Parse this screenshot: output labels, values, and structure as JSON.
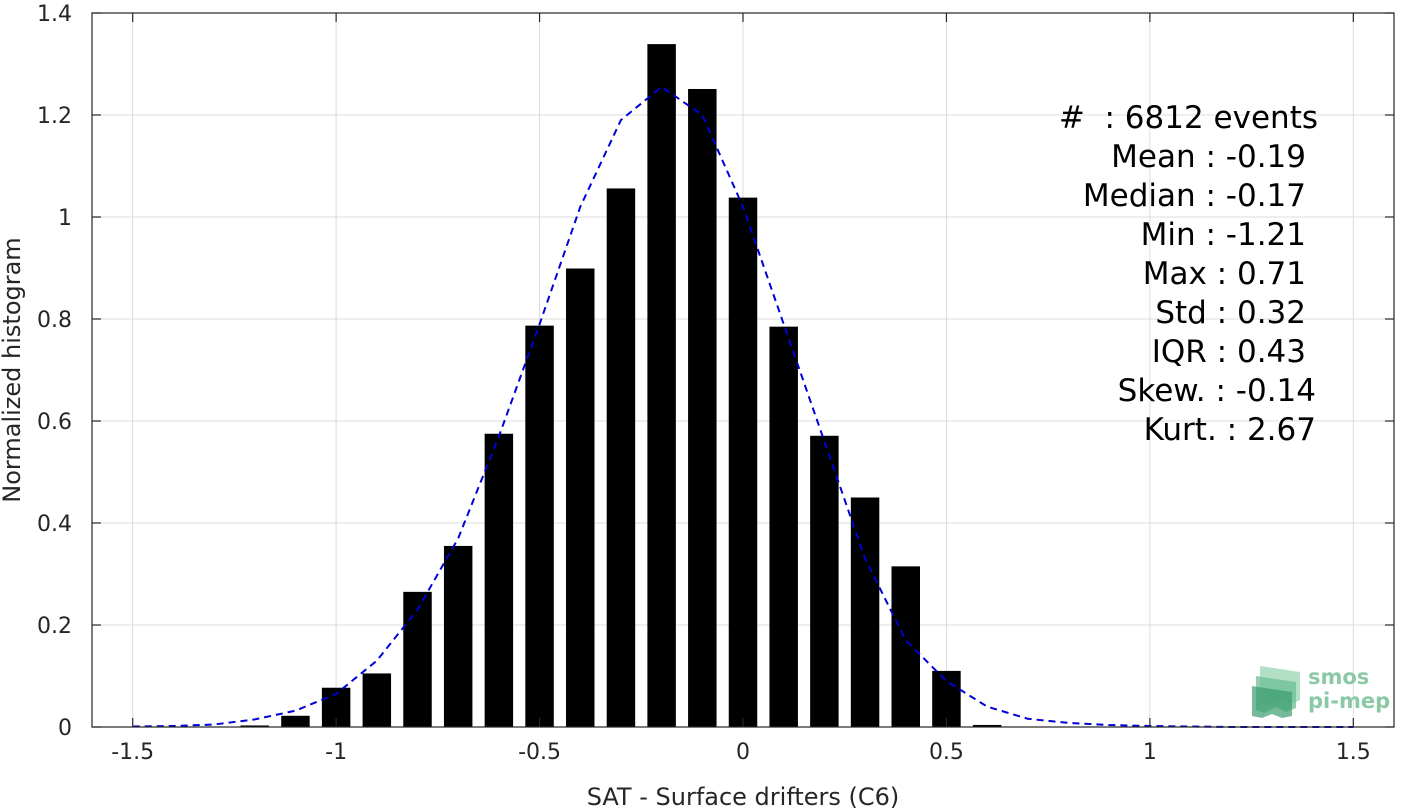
{
  "chart_data": {
    "type": "bar",
    "xlabel": "SAT - Surface drifters (C6)",
    "ylabel": "Normalized histogram",
    "xlim": [
      -1.6,
      1.6
    ],
    "ylim": [
      0,
      1.4
    ],
    "x_ticks": [
      -1.5,
      -1,
      -0.5,
      0,
      0.5,
      1,
      1.5
    ],
    "x_tick_labels": [
      "-1.5",
      "-1",
      "-0.5",
      "0",
      "0.5",
      "1",
      "1.5"
    ],
    "y_ticks": [
      0,
      0.2,
      0.4,
      0.6,
      0.8,
      1,
      1.2,
      1.4
    ],
    "y_tick_labels": [
      "0",
      "0.2",
      "0.4",
      "0.6",
      "0.8",
      "1",
      "1.2",
      "1.4"
    ],
    "grid": true,
    "bar_width": 0.07,
    "histogram": {
      "name": "",
      "color": "#000000",
      "x": [
        -1.2,
        -1.1,
        -1.0,
        -0.9,
        -0.8,
        -0.7,
        -0.6,
        -0.5,
        -0.4,
        -0.3,
        -0.2,
        -0.1,
        0.0,
        0.1,
        0.2,
        0.3,
        0.4,
        0.5,
        0.6
      ],
      "values": [
        0.003,
        0.022,
        0.077,
        0.105,
        0.265,
        0.355,
        0.575,
        0.787,
        0.899,
        1.056,
        1.339,
        1.251,
        1.038,
        0.785,
        0.571,
        0.45,
        0.315,
        0.11,
        0.004
      ]
    },
    "fit": {
      "name": "",
      "type": "line",
      "style": "dashed",
      "color": "#0000d8",
      "x": [
        -1.5,
        -1.4,
        -1.3,
        -1.2,
        -1.1,
        -1.0,
        -0.9,
        -0.8,
        -0.7,
        -0.6,
        -0.5,
        -0.4,
        -0.3,
        -0.2,
        -0.1,
        0.0,
        0.1,
        0.2,
        0.3,
        0.4,
        0.5,
        0.6,
        0.7,
        0.8,
        0.9,
        1.0,
        1.1,
        1.2,
        1.3,
        1.4,
        1.5
      ],
      "values": [
        0.001,
        0.002,
        0.005,
        0.015,
        0.032,
        0.065,
        0.13,
        0.23,
        0.37,
        0.57,
        0.79,
        1.02,
        1.19,
        1.255,
        1.2,
        1.02,
        0.79,
        0.56,
        0.33,
        0.17,
        0.09,
        0.04,
        0.016,
        0.008,
        0.004,
        0.002,
        0.001,
        0.0,
        0.0,
        0.0,
        0.0
      ]
    },
    "annotation": {
      "lines": [
        "#  : 6812 events",
        "Mean : -0.19",
        "Median : -0.17",
        "Min : -1.21",
        "Max : 0.71",
        "Std : 0.32",
        "IQR : 0.43",
        "Skew. : -0.14",
        "Kurt. : 2.67"
      ]
    }
  },
  "logo": {
    "line1": "smos",
    "line2": "pi-mep",
    "colors": [
      "#9fd8b8",
      "#6cbf95",
      "#3a9c70"
    ],
    "text_color": "#8bc9a6"
  }
}
